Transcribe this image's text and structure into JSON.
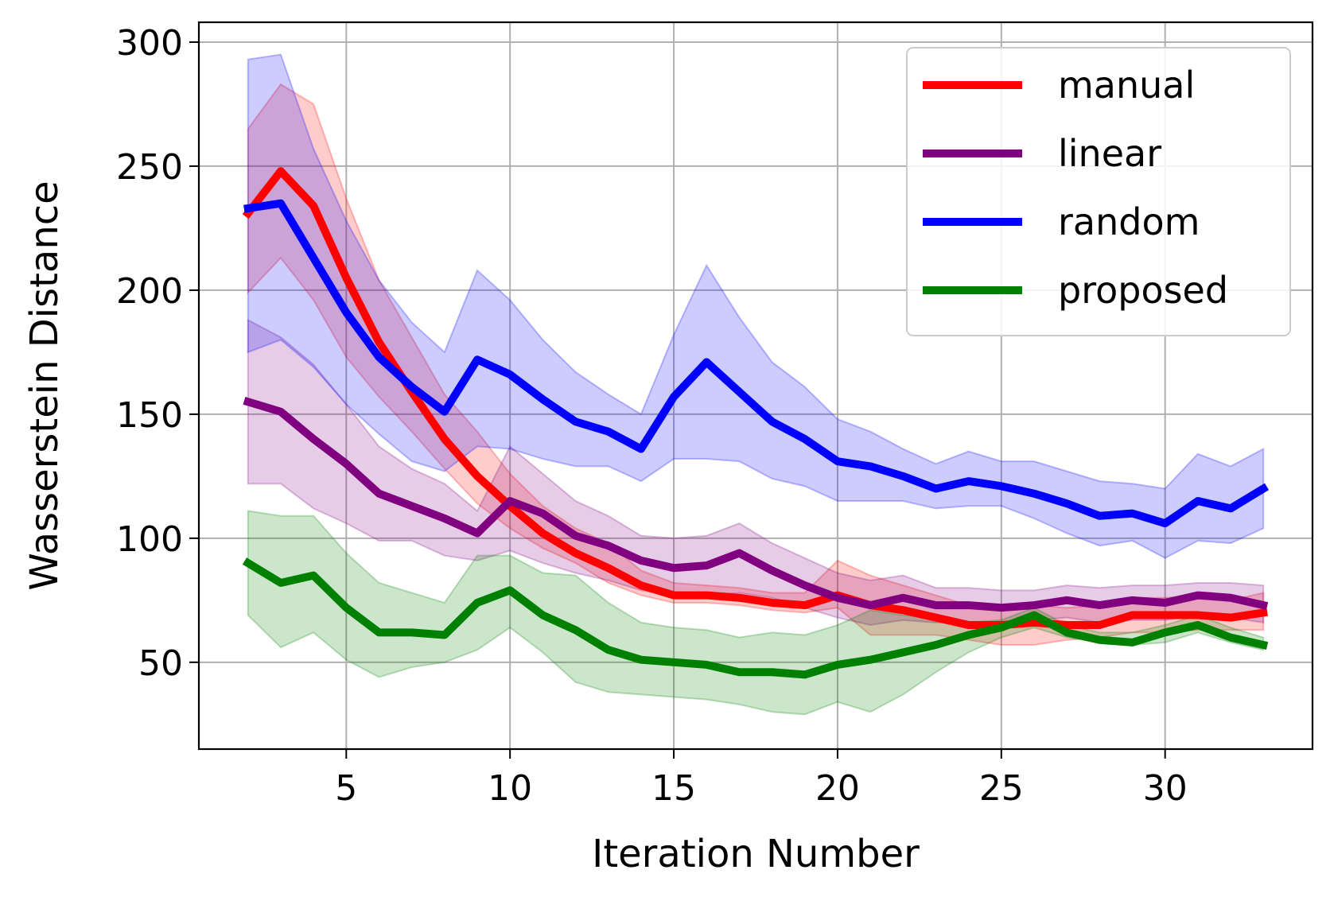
{
  "chart_data": {
    "type": "line",
    "title": "",
    "xlabel": "Iteration Number",
    "ylabel": "Wasserstein Distance",
    "xlim": [
      0.5,
      34.5
    ],
    "ylim": [
      15,
      308
    ],
    "xticks": [
      5,
      10,
      15,
      20,
      25,
      30
    ],
    "yticks": [
      50,
      100,
      150,
      200,
      250,
      300
    ],
    "grid": true,
    "legend_position": "top-right",
    "x": [
      2,
      3,
      4,
      5,
      6,
      7,
      8,
      9,
      10,
      11,
      12,
      13,
      14,
      15,
      16,
      17,
      18,
      19,
      20,
      21,
      22,
      23,
      24,
      25,
      26,
      27,
      28,
      29,
      30,
      31,
      32,
      33
    ],
    "series": [
      {
        "name": "manual",
        "color": "#ff0000",
        "values": [
          231,
          248,
          234,
          205,
          179,
          159,
          140,
          125,
          113,
          102,
          94,
          88,
          81,
          77,
          77,
          76,
          74,
          73,
          77,
          73,
          71,
          68,
          65,
          65,
          66,
          65,
          65,
          69,
          69,
          69,
          68,
          70
        ],
        "lower": [
          199,
          213,
          196,
          173,
          157,
          143,
          128,
          114,
          104,
          96,
          90,
          82,
          77,
          74,
          74,
          73,
          71,
          70,
          72,
          61,
          61,
          61,
          59,
          57,
          57,
          59,
          60,
          62,
          62,
          63,
          63,
          63
        ],
        "upper": [
          265,
          283,
          275,
          237,
          204,
          181,
          158,
          143,
          126,
          113,
          104,
          98,
          87,
          82,
          81,
          80,
          78,
          78,
          91,
          85,
          81,
          77,
          73,
          72,
          73,
          72,
          73,
          76,
          76,
          77,
          75,
          78
        ]
      },
      {
        "name": "linear",
        "color": "#800080",
        "values": [
          155,
          151,
          140,
          130,
          118,
          113,
          108,
          102,
          115,
          110,
          101,
          97,
          91,
          88,
          89,
          94,
          87,
          81,
          76,
          73,
          76,
          73,
          73,
          72,
          73,
          75,
          73,
          75,
          74,
          77,
          76,
          73
        ],
        "lower": [
          122,
          122,
          112,
          106,
          99,
          99,
          93,
          91,
          95,
          90,
          86,
          83,
          79,
          77,
          77,
          78,
          76,
          72,
          68,
          65,
          67,
          66,
          66,
          66,
          67,
          68,
          66,
          67,
          67,
          69,
          68,
          66
        ],
        "upper": [
          188,
          181,
          170,
          154,
          137,
          128,
          122,
          111,
          137,
          126,
          115,
          109,
          101,
          100,
          101,
          106,
          98,
          92,
          86,
          83,
          85,
          80,
          80,
          79,
          79,
          81,
          80,
          81,
          81,
          82,
          82,
          81
        ]
      },
      {
        "name": "random",
        "color": "#0000ff",
        "values": [
          233,
          235,
          213,
          191,
          173,
          161,
          151,
          172,
          166,
          156,
          147,
          143,
          136,
          157,
          171,
          159,
          147,
          140,
          131,
          129,
          125,
          120,
          123,
          121,
          118,
          114,
          109,
          110,
          106,
          115,
          112,
          120
        ],
        "lower": [
          175,
          180,
          169,
          154,
          142,
          131,
          127,
          137,
          136,
          132,
          129,
          129,
          123,
          132,
          132,
          131,
          124,
          121,
          115,
          115,
          115,
          112,
          113,
          113,
          108,
          102,
          97,
          99,
          92,
          99,
          98,
          104
        ],
        "upper": [
          293,
          295,
          257,
          228,
          204,
          187,
          175,
          208,
          196,
          180,
          167,
          158,
          150,
          182,
          210,
          189,
          171,
          161,
          148,
          143,
          136,
          130,
          135,
          131,
          131,
          127,
          123,
          122,
          120,
          134,
          129,
          136
        ]
      },
      {
        "name": "proposed",
        "color": "#008000",
        "values": [
          90,
          82,
          85,
          72,
          62,
          62,
          61,
          74,
          79,
          69,
          63,
          55,
          51,
          50,
          49,
          46,
          46,
          45,
          49,
          51,
          54,
          57,
          61,
          64,
          69,
          62,
          59,
          58,
          62,
          65,
          60,
          57
        ],
        "lower": [
          69,
          56,
          62,
          51,
          44,
          48,
          50,
          55,
          64,
          54,
          42,
          38,
          37,
          36,
          35,
          33,
          30,
          29,
          34,
          30,
          37,
          46,
          54,
          60,
          64,
          60,
          58,
          57,
          58,
          62,
          58,
          55
        ],
        "upper": [
          111,
          109,
          109,
          94,
          82,
          78,
          74,
          93,
          93,
          86,
          85,
          74,
          66,
          64,
          63,
          60,
          62,
          61,
          65,
          71,
          69,
          68,
          66,
          67,
          72,
          65,
          62,
          62,
          65,
          69,
          64,
          60
        ]
      }
    ]
  }
}
